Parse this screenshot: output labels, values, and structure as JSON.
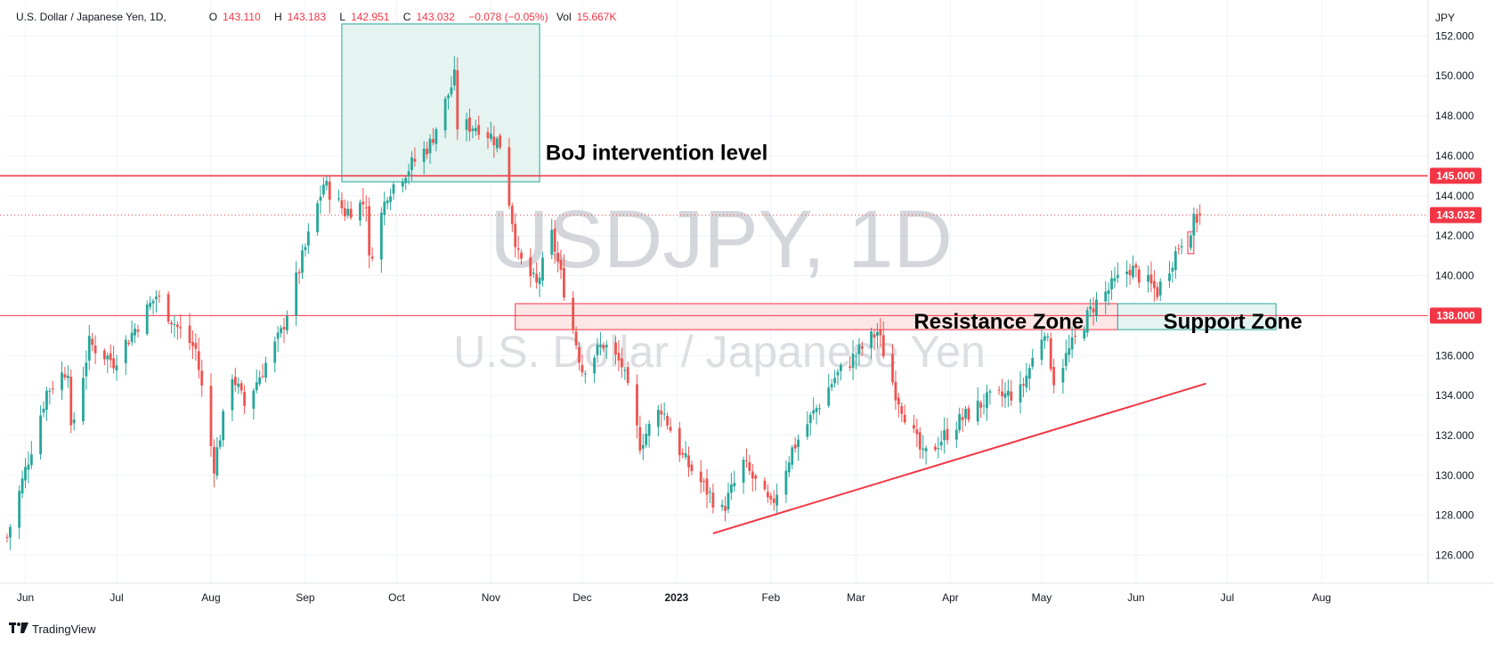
{
  "legend": {
    "symbol": "U.S. Dollar / Japanese Yen, 1D,",
    "open_label": "O",
    "open": "143.110",
    "high_label": "H",
    "high": "143.183",
    "low_label": "L",
    "low": "142.951",
    "close_label": "C",
    "close": "143.032",
    "change": "−0.078 (−0.05%)",
    "vol_label": "Vol",
    "vol": "15.667K"
  },
  "watermark": {
    "ticker": "USDJPY, 1D",
    "name": "U.S. Dollar / Japanese Yen"
  },
  "brand": {
    "name": "TradingView",
    "icon": "tradingview-logo-icon"
  },
  "colors": {
    "up": "#26a69a",
    "down": "#ef5350",
    "line_red": "#f23645",
    "zone_green_fill": "#e0f2ef",
    "zone_green_stroke": "#26a69a",
    "zone_red_fill": "#fde2e2",
    "zone_red_stroke": "#f23645",
    "grid": "#f0f3fa"
  },
  "chart_data": {
    "type": "candlestick",
    "currency": "JPY",
    "ylim": [
      124.6,
      153.8
    ],
    "y_ticks": [
      "152.000",
      "150.000",
      "148.000",
      "146.000",
      "144.000",
      "142.000",
      "140.000",
      "138.000",
      "136.000",
      "134.000",
      "132.000",
      "130.000",
      "128.000",
      "126.000"
    ],
    "y_tick_values": [
      152,
      150,
      148,
      146,
      144,
      142,
      140,
      138,
      136,
      134,
      132,
      130,
      128,
      126
    ],
    "x_range": [
      "2022-05-26",
      "2023-09-05"
    ],
    "x_ticks": [
      {
        "label": "Jun",
        "date": "2022-06-01",
        "bold": false
      },
      {
        "label": "Jul",
        "date": "2022-07-01",
        "bold": false
      },
      {
        "label": "Aug",
        "date": "2022-08-01",
        "bold": false
      },
      {
        "label": "Sep",
        "date": "2022-09-01",
        "bold": false
      },
      {
        "label": "Oct",
        "date": "2022-10-01",
        "bold": false
      },
      {
        "label": "Nov",
        "date": "2022-11-01",
        "bold": false
      },
      {
        "label": "Dec",
        "date": "2022-12-01",
        "bold": false
      },
      {
        "label": "2023",
        "date": "2023-01-01",
        "bold": true
      },
      {
        "label": "Feb",
        "date": "2023-02-01",
        "bold": false
      },
      {
        "label": "Mar",
        "date": "2023-03-01",
        "bold": false
      },
      {
        "label": "Apr",
        "date": "2023-04-01",
        "bold": false
      },
      {
        "label": "May",
        "date": "2023-05-01",
        "bold": false
      },
      {
        "label": "Jun",
        "date": "2023-06-01",
        "bold": false
      },
      {
        "label": "Jul",
        "date": "2023-07-01",
        "bold": false
      },
      {
        "label": "Aug",
        "date": "2023-08-01",
        "bold": false
      }
    ],
    "price_path": [
      [
        "2022-05-26",
        126.9
      ],
      [
        "2022-06-08",
        134.2
      ],
      [
        "2022-06-15",
        135.4
      ],
      [
        "2022-06-16",
        132.1
      ],
      [
        "2022-06-22",
        136.6
      ],
      [
        "2022-06-30",
        135.7
      ],
      [
        "2022-07-14",
        139.0
      ],
      [
        "2022-07-21",
        137.4
      ],
      [
        "2022-07-27",
        136.3
      ],
      [
        "2022-08-02",
        130.5
      ],
      [
        "2022-08-08",
        135.1
      ],
      [
        "2022-08-12",
        133.5
      ],
      [
        "2022-08-24",
        137.1
      ],
      [
        "2022-09-07",
        144.6
      ],
      [
        "2022-09-14",
        143.2
      ],
      [
        "2022-09-21",
        143.7
      ],
      [
        "2022-09-22",
        140.7
      ],
      [
        "2022-09-28",
        144.2
      ],
      [
        "2022-10-12",
        146.6
      ],
      [
        "2022-10-20",
        149.9
      ],
      [
        "2022-10-21",
        147.5
      ],
      [
        "2022-10-28",
        147.5
      ],
      [
        "2022-11-04",
        146.6
      ],
      [
        "2022-11-10",
        140.9
      ],
      [
        "2022-11-16",
        139.5
      ],
      [
        "2022-11-21",
        142.0
      ],
      [
        "2022-12-01",
        135.3
      ],
      [
        "2022-12-08",
        136.6
      ],
      [
        "2022-12-14",
        135.5
      ],
      [
        "2022-12-20",
        131.6
      ],
      [
        "2022-12-27",
        133.4
      ],
      [
        "2023-01-03",
        130.9
      ],
      [
        "2023-01-16",
        128.2
      ],
      [
        "2023-01-23",
        130.6
      ],
      [
        "2023-02-01",
        128.4
      ],
      [
        "2023-02-08",
        131.3
      ],
      [
        "2023-02-22",
        134.9
      ],
      [
        "2023-03-08",
        137.2
      ],
      [
        "2023-03-14",
        134.2
      ],
      [
        "2023-03-23",
        130.9
      ],
      [
        "2023-04-03",
        132.6
      ],
      [
        "2023-04-12",
        133.7
      ],
      [
        "2023-04-24",
        134.2
      ],
      [
        "2023-05-02",
        137.4
      ],
      [
        "2023-05-05",
        134.8
      ],
      [
        "2023-05-18",
        138.5
      ],
      [
        "2023-05-30",
        140.4
      ],
      [
        "2023-06-08",
        139.2
      ],
      [
        "2023-06-16",
        141.8
      ],
      [
        "2023-06-22",
        143.1
      ]
    ],
    "last_price": 143.032,
    "price_labels": [
      {
        "text": "145.000",
        "value": 145.0
      },
      {
        "text": "143.032",
        "value": 143.032
      },
      {
        "text": "138.000",
        "value": 138.0
      }
    ],
    "horizontal_lines": [
      {
        "value": 145.0,
        "color": "#f23645"
      },
      {
        "value": 138.0,
        "color": "#f23645"
      }
    ],
    "last_price_line": {
      "value": 143.032,
      "style": "dotted"
    },
    "zones": [
      {
        "kind": "green",
        "x1": "2022-09-13",
        "x2": "2022-11-17",
        "y_top": 152.6,
        "y_bottom": 144.7
      },
      {
        "kind": "red",
        "x1": "2022-11-09",
        "x2": "2023-05-26",
        "y_top": 138.6,
        "y_bottom": 137.3
      },
      {
        "kind": "green",
        "x1": "2023-05-26",
        "x2": "2023-07-17",
        "y_top": 138.6,
        "y_bottom": 137.3
      },
      {
        "kind": "red-small",
        "x1": "2023-06-18",
        "x2": "2023-06-20",
        "y_top": 142.2,
        "y_bottom": 141.1
      }
    ],
    "trendline": {
      "x1": "2023-01-13",
      "y1": 127.1,
      "x2": "2023-06-24",
      "y2": 134.6,
      "color": "#f23645"
    },
    "annotations": [
      {
        "text": "BoJ intervention level",
        "x": "2022-11-19",
        "y": 145.8
      },
      {
        "text": "Resistance Zone",
        "x": "2023-03-20",
        "y": 137.35
      },
      {
        "text": "Support Zone",
        "x": "2023-06-10",
        "y": 137.35
      }
    ]
  }
}
